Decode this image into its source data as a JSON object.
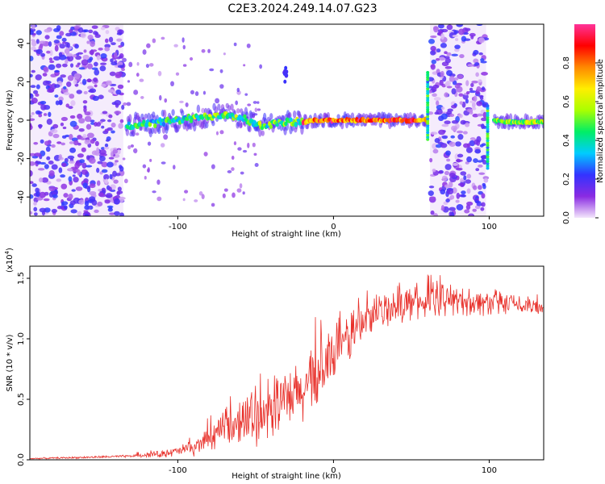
{
  "figure": {
    "title": "C2E3.2024.249.14.07.G23"
  },
  "chart_data": [
    {
      "type": "heatmap",
      "xlabel": "Height of straight line (km)",
      "ylabel": "Frequency (Hz)",
      "xlim": [
        -195,
        135
      ],
      "ylim": [
        -50,
        50
      ],
      "x_ticks": [
        -100,
        0,
        100
      ],
      "y_ticks": [
        -40,
        -20,
        0,
        20,
        40
      ],
      "x_tick_labels": [
        "-100",
        "0",
        "100"
      ],
      "y_tick_labels": [
        "-40",
        "-20",
        "0",
        "20",
        "40"
      ],
      "grid": false,
      "colorbar": {
        "label": "Normalized spectral amplitude",
        "range": [
          0,
          1
        ],
        "ticks": [
          0.0,
          0.2,
          0.4,
          0.6,
          0.8
        ],
        "tick_labels": [
          "0.0",
          "0.2",
          "0.4",
          "0.6",
          "0.8"
        ],
        "colors": [
          "#f3e6fb",
          "#8a2be2",
          "#3333ff",
          "#00ccff",
          "#00ee66",
          "#aaff00",
          "#ffee00",
          "#ff8800",
          "#ff0000",
          "#ff3399"
        ]
      },
      "noise_regions_km": [
        [
          -195,
          -135
        ],
        [
          62,
          98
        ]
      ],
      "signal_trace": {
        "x": [
          -133,
          -120,
          -110,
          -100,
          -90,
          -80,
          -70,
          -60,
          -55,
          -50,
          -45,
          -40,
          -30,
          -20,
          -10,
          0,
          10,
          20,
          40,
          55,
          60
        ],
        "y": [
          -3,
          -2,
          -1,
          0,
          1,
          2,
          3,
          2,
          0,
          -2,
          -3,
          -2,
          -1,
          -1,
          0,
          0,
          0,
          0,
          0,
          0,
          0
        ]
      },
      "signal_trace_2": {
        "x": [
          103,
          110,
          120,
          130,
          135
        ],
        "y": [
          0,
          -1,
          -1,
          -1,
          -1
        ]
      },
      "spikes": [
        {
          "x": 60.5,
          "y_from": -10,
          "y_to": 25
        },
        {
          "x": 99,
          "y_from": -25,
          "y_to": 8
        }
      ],
      "blob": {
        "x": -31,
        "y": 24
      }
    },
    {
      "type": "line",
      "xlabel": "Height of straight line (km)",
      "ylabel": "SNR (10 * v/v)",
      "multiplier_label": "(x10",
      "multiplier_exp": "4",
      "multiplier_close": ")",
      "xlim": [
        -195,
        135
      ],
      "ylim": [
        0,
        1.6
      ],
      "x_ticks": [
        -100,
        0,
        100
      ],
      "y_ticks": [
        0.0,
        0.5,
        1.0,
        1.5
      ],
      "x_tick_labels": [
        "-100",
        "0",
        "100"
      ],
      "y_tick_labels": [
        "0.0",
        "0.5",
        "1.0",
        "1.5"
      ],
      "grid": false,
      "series": [
        {
          "color": "#e8302a",
          "envelope": {
            "x": [
              -195,
              -160,
              -130,
              -120,
              -110,
              -100,
              -90,
              -80,
              -70,
              -60,
              -50,
              -40,
              -30,
              -20,
              -10,
              0,
              10,
              20,
              30,
              40,
              50,
              60,
              70,
              80,
              90,
              100,
              110,
              120,
              135
            ],
            "y": [
              0.01,
              0.02,
              0.03,
              0.04,
              0.05,
              0.07,
              0.1,
              0.17,
              0.25,
              0.3,
              0.35,
              0.42,
              0.48,
              0.55,
              0.7,
              0.85,
              1.02,
              1.15,
              1.22,
              1.28,
              1.3,
              1.3,
              1.32,
              1.32,
              1.3,
              1.3,
              1.28,
              1.27,
              1.26
            ]
          },
          "noise": {
            "x": [
              -195,
              -130,
              -120,
              -100,
              -80,
              -60,
              -40,
              -20,
              0,
              20,
              40,
              60,
              80,
              100,
              120,
              135
            ],
            "y": [
              0.004,
              0.008,
              0.015,
              0.03,
              0.07,
              0.13,
              0.18,
              0.2,
              0.18,
              0.13,
              0.11,
              0.1,
              0.09,
              0.08,
              0.06,
              0.05
            ]
          }
        }
      ]
    }
  ]
}
